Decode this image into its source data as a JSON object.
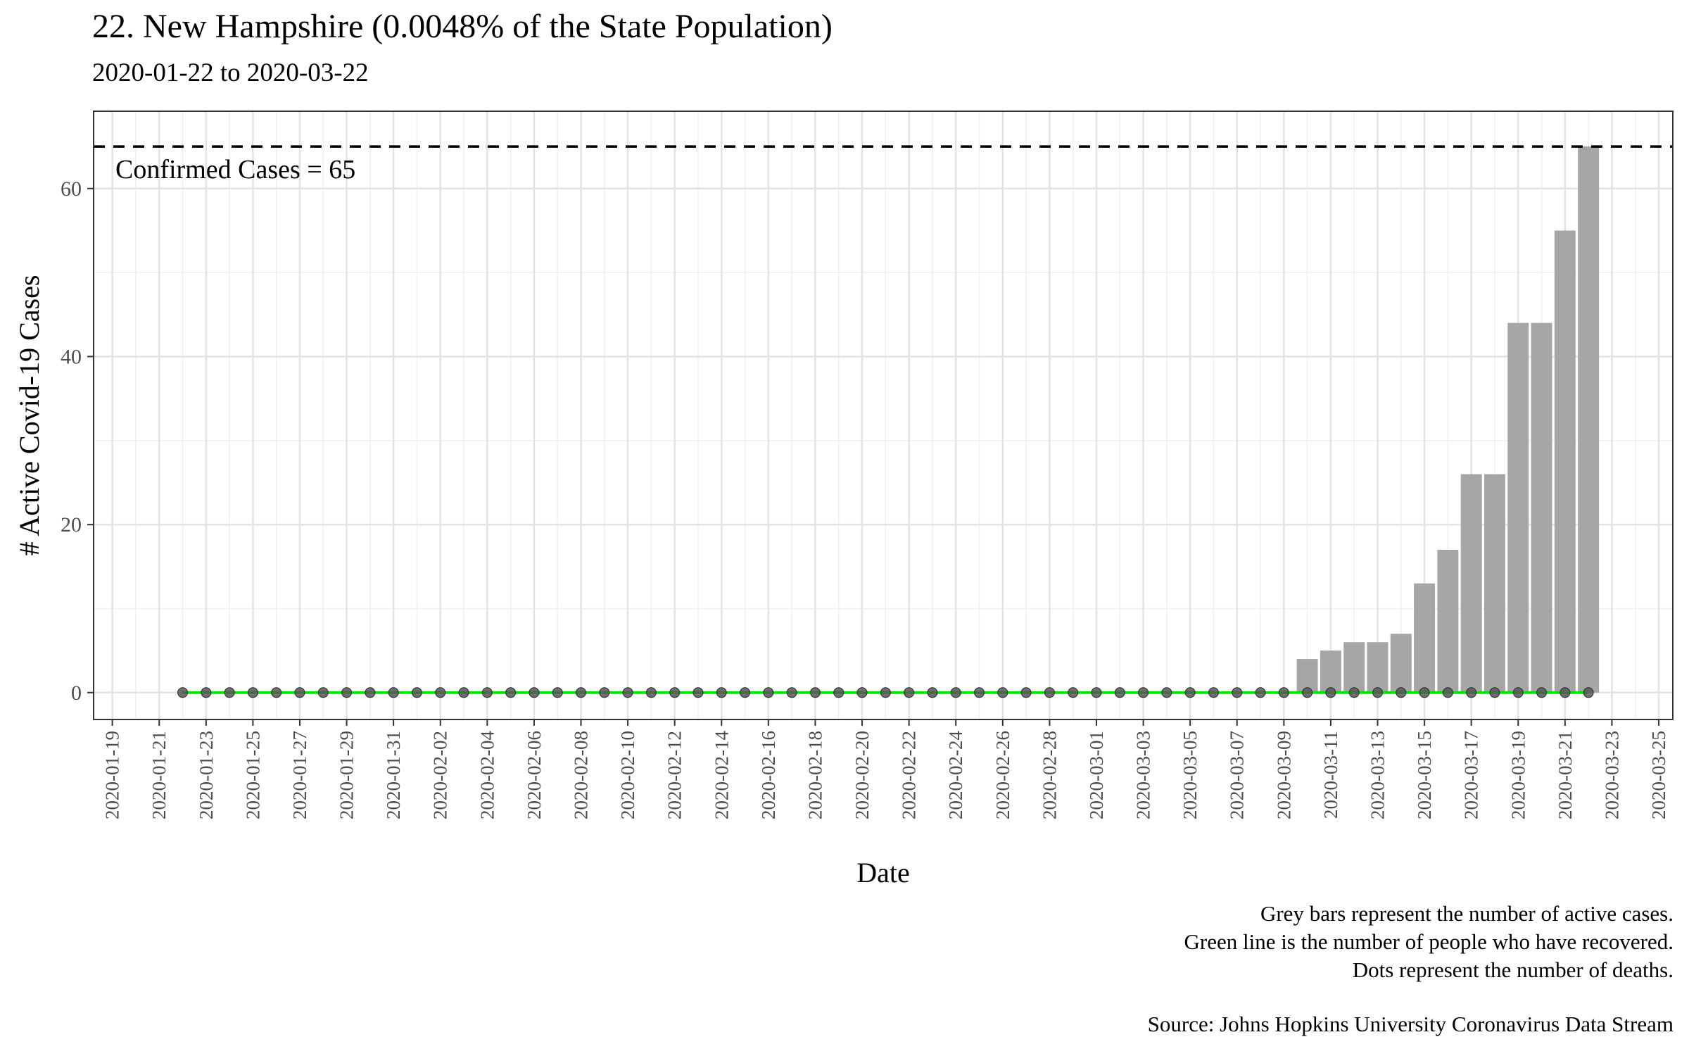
{
  "chart_data": {
    "type": "bar",
    "title": "22. New Hampshire (0.0048% of the State Population)",
    "subtitle": "2020-01-22 to 2020-03-22",
    "xlabel": "Date",
    "ylabel": "# Active Covid-19 Cases",
    "ylim": [
      -3.2,
      69.2
    ],
    "y_ticks": [
      0,
      20,
      40,
      60
    ],
    "x_start_date": "2020-01-22",
    "x_range_days": [
      -3.8,
      63.6
    ],
    "x_ticks": [
      "2020-01-19",
      "2020-01-21",
      "2020-01-23",
      "2020-01-25",
      "2020-01-27",
      "2020-01-29",
      "2020-01-31",
      "2020-02-02",
      "2020-02-04",
      "2020-02-06",
      "2020-02-08",
      "2020-02-10",
      "2020-02-12",
      "2020-02-14",
      "2020-02-16",
      "2020-02-18",
      "2020-02-20",
      "2020-02-22",
      "2020-02-24",
      "2020-02-26",
      "2020-02-28",
      "2020-03-01",
      "2020-03-03",
      "2020-03-05",
      "2020-03-07",
      "2020-03-09",
      "2020-03-11",
      "2020-03-13",
      "2020-03-15",
      "2020-03-17",
      "2020-03-19",
      "2020-03-21",
      "2020-03-23",
      "2020-03-25"
    ],
    "series": [
      {
        "name": "Active cases",
        "type": "bar",
        "color": "#a6a6a6",
        "values": [
          0,
          0,
          0,
          0,
          0,
          0,
          0,
          0,
          0,
          0,
          0,
          0,
          0,
          0,
          0,
          0,
          0,
          0,
          0,
          0,
          0,
          0,
          0,
          0,
          0,
          0,
          0,
          0,
          0,
          0,
          0,
          0,
          0,
          0,
          0,
          0,
          0,
          0,
          0,
          0,
          0,
          0,
          0,
          0,
          0,
          0,
          0,
          0,
          4,
          5,
          6,
          6,
          7,
          13,
          17,
          26,
          26,
          44,
          44,
          55,
          65
        ]
      },
      {
        "name": "Recovered",
        "type": "line",
        "color": "#00e600",
        "values": [
          0,
          0,
          0,
          0,
          0,
          0,
          0,
          0,
          0,
          0,
          0,
          0,
          0,
          0,
          0,
          0,
          0,
          0,
          0,
          0,
          0,
          0,
          0,
          0,
          0,
          0,
          0,
          0,
          0,
          0,
          0,
          0,
          0,
          0,
          0,
          0,
          0,
          0,
          0,
          0,
          0,
          0,
          0,
          0,
          0,
          0,
          0,
          0,
          0,
          0,
          0,
          0,
          0,
          0,
          0,
          0,
          0,
          0,
          0,
          0,
          0
        ]
      },
      {
        "name": "Deaths",
        "type": "points",
        "color": "#555555",
        "values": [
          0,
          0,
          0,
          0,
          0,
          0,
          0,
          0,
          0,
          0,
          0,
          0,
          0,
          0,
          0,
          0,
          0,
          0,
          0,
          0,
          0,
          0,
          0,
          0,
          0,
          0,
          0,
          0,
          0,
          0,
          0,
          0,
          0,
          0,
          0,
          0,
          0,
          0,
          0,
          0,
          0,
          0,
          0,
          0,
          0,
          0,
          0,
          0,
          0,
          0,
          0,
          0,
          0,
          0,
          0,
          0,
          0,
          0,
          0,
          0,
          0
        ]
      }
    ],
    "reference_line": {
      "value": 65,
      "label": "Confirmed Cases = 65",
      "style": "dashed"
    },
    "grid": true,
    "captions": [
      "Grey bars represent the number of active cases.",
      "Green line is the number of people who have recovered.",
      "Dots represent the number of deaths."
    ],
    "source": "Source: Johns Hopkins University Coronavirus Data Stream"
  }
}
